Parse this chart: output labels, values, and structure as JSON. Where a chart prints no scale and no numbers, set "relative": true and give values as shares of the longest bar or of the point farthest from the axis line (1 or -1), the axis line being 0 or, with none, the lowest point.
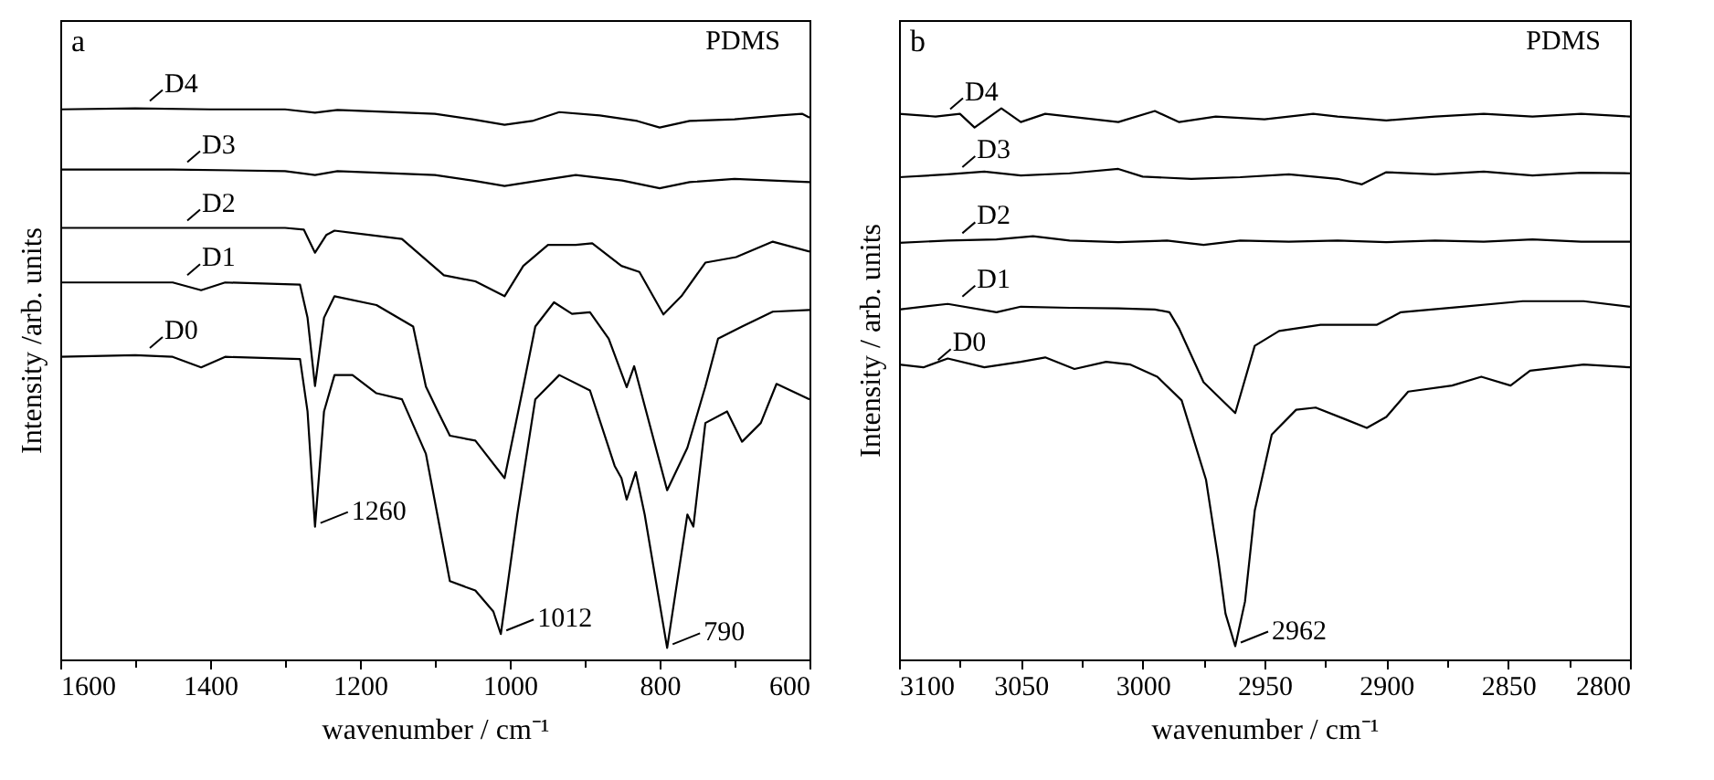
{
  "chart_data": [
    {
      "type": "line",
      "relative": true,
      "xlabel": "wavenumber / cm⁻¹",
      "ylabel": "Intensity /arb. units",
      "legend": "left",
      "xlim": [
        1600,
        600
      ],
      "xticks": [
        1600,
        {
          "value": 1500,
          "label": null
        },
        1400,
        {
          "value": 1300,
          "label": null
        },
        1200,
        {
          "value": 1100,
          "label": null
        },
        1000,
        {
          "value": 900,
          "label": null
        },
        800,
        {
          "value": 700,
          "label": null
        },
        600
      ],
      "annotations": [
        "a",
        "PDMS",
        {
          "text": "1260",
          "x": 1260,
          "y": 0.241
        },
        {
          "text": "1012",
          "x": 1012,
          "y": 0.046
        },
        {
          "text": "790",
          "x": 790,
          "y": 0.021
        }
      ],
      "series": [
        {
          "name": "D4",
          "color": "#000000",
          "x": [
            1600,
            1500,
            1400,
            1300,
            1260,
            1230,
            1100,
            1050,
            1007,
            970,
            934,
            880,
            830,
            800,
            760,
            700,
            640,
            610,
            600
          ],
          "values": [
            0.998,
            1.0,
            0.998,
            0.998,
            0.992,
            0.997,
            0.99,
            0.98,
            0.97,
            0.977,
            0.993,
            0.987,
            0.977,
            0.965,
            0.977,
            0.98,
            0.987,
            0.99,
            0.983
          ]
        },
        {
          "name": "D3",
          "color": "#000000",
          "x": [
            1600,
            1450,
            1300,
            1260,
            1230,
            1100,
            1050,
            1007,
            960,
            912,
            850,
            800,
            760,
            700,
            650,
            600
          ],
          "values": [
            0.889,
            0.889,
            0.886,
            0.879,
            0.886,
            0.879,
            0.869,
            0.859,
            0.869,
            0.879,
            0.869,
            0.855,
            0.866,
            0.872,
            0.869,
            0.866
          ]
        },
        {
          "name": "D2",
          "color": "#000000",
          "x": [
            1600,
            1450,
            1300,
            1275,
            1260,
            1245,
            1234,
            1144,
            1088,
            1046,
            1007,
            982,
            949,
            912,
            890,
            851,
            827,
            795,
            771,
            739,
            698,
            649,
            600
          ],
          "values": [
            0.783,
            0.783,
            0.783,
            0.78,
            0.738,
            0.77,
            0.778,
            0.763,
            0.697,
            0.686,
            0.659,
            0.714,
            0.752,
            0.752,
            0.755,
            0.714,
            0.703,
            0.626,
            0.659,
            0.72,
            0.73,
            0.758,
            0.74
          ]
        },
        {
          "name": "D1",
          "color": "#000000",
          "x": [
            1600,
            1450,
            1412,
            1380,
            1280,
            1270,
            1260,
            1248,
            1234,
            1178,
            1129,
            1112,
            1096,
            1080,
            1046,
            1007,
            982,
            966,
            941,
            917,
            893,
            868,
            844,
            834,
            790,
            763,
            739,
            722,
            690,
            649,
            600
          ],
          "values": [
            0.684,
            0.684,
            0.67,
            0.684,
            0.68,
            0.62,
            0.496,
            0.62,
            0.659,
            0.643,
            0.604,
            0.495,
            0.45,
            0.406,
            0.397,
            0.329,
            0.495,
            0.604,
            0.648,
            0.627,
            0.63,
            0.582,
            0.494,
            0.532,
            0.307,
            0.384,
            0.495,
            0.582,
            0.604,
            0.631,
            0.634
          ]
        },
        {
          "name": "D0",
          "color": "#000000",
          "x": [
            1600,
            1500,
            1450,
            1412,
            1380,
            1280,
            1270,
            1260,
            1248,
            1234,
            1210,
            1178,
            1144,
            1112,
            1080,
            1046,
            1022,
            1012,
            990,
            966,
            934,
            893,
            860,
            851,
            844,
            832,
            820,
            790,
            763,
            755,
            739,
            710,
            690,
            665,
            644,
            600
          ],
          "values": [
            0.549,
            0.552,
            0.549,
            0.53,
            0.549,
            0.545,
            0.45,
            0.241,
            0.45,
            0.516,
            0.516,
            0.483,
            0.472,
            0.373,
            0.142,
            0.125,
            0.087,
            0.046,
            0.263,
            0.472,
            0.516,
            0.488,
            0.351,
            0.329,
            0.29,
            0.34,
            0.263,
            0.021,
            0.263,
            0.241,
            0.429,
            0.45,
            0.395,
            0.429,
            0.5,
            0.472
          ]
        }
      ]
    },
    {
      "type": "line",
      "relative": true,
      "xlabel": "wavenumber / cm⁻¹",
      "ylabel": "Intensity / arb. units",
      "legend": "left",
      "xlim": [
        3100,
        2800
      ],
      "xticks": [
        3100,
        {
          "value": 3075,
          "label": null
        },
        3050,
        {
          "value": 3025,
          "label": null
        },
        3000,
        {
          "value": 2975,
          "label": null
        },
        2950,
        {
          "value": 2925,
          "label": null
        },
        2900,
        {
          "value": 2875,
          "label": null
        },
        2850,
        {
          "value": 2825,
          "label": null
        },
        2800
      ],
      "annotations": [
        "b",
        "PDMS",
        {
          "text": "2962",
          "x": 2962,
          "y": 0.024
        }
      ],
      "series": [
        {
          "name": "D4",
          "color": "#000000",
          "x": [
            3100,
            3085,
            3075,
            3069,
            3058,
            3050,
            3040,
            3030,
            3010,
            2995,
            2985,
            2970,
            2950,
            2930,
            2920,
            2900,
            2880,
            2860,
            2840,
            2820,
            2800
          ],
          "values": [
            0.99,
            0.985,
            0.99,
            0.965,
            1.0,
            0.975,
            0.99,
            0.985,
            0.975,
            0.995,
            0.975,
            0.985,
            0.98,
            0.99,
            0.985,
            0.978,
            0.985,
            0.99,
            0.985,
            0.99,
            0.985
          ]
        },
        {
          "name": "D3",
          "color": "#000000",
          "x": [
            3100,
            3080,
            3065,
            3050,
            3030,
            3010,
            3000,
            2980,
            2960,
            2940,
            2920,
            2910,
            2900,
            2880,
            2860,
            2840,
            2820,
            2800
          ],
          "values": [
            0.875,
            0.88,
            0.885,
            0.878,
            0.882,
            0.89,
            0.876,
            0.872,
            0.875,
            0.88,
            0.872,
            0.862,
            0.884,
            0.88,
            0.885,
            0.878,
            0.883,
            0.882
          ]
        },
        {
          "name": "D2",
          "color": "#000000",
          "x": [
            3100,
            3080,
            3060,
            3045,
            3030,
            3010,
            2990,
            2975,
            2960,
            2940,
            2920,
            2900,
            2880,
            2860,
            2840,
            2820,
            2800
          ],
          "values": [
            0.756,
            0.76,
            0.762,
            0.768,
            0.76,
            0.757,
            0.76,
            0.752,
            0.76,
            0.758,
            0.76,
            0.757,
            0.76,
            0.758,
            0.762,
            0.758,
            0.758
          ]
        },
        {
          "name": "D1",
          "color": "#000000",
          "x": [
            3100,
            3080,
            3060,
            3050,
            3030,
            3010,
            2995,
            2989,
            2985,
            2975,
            2962,
            2954,
            2944,
            2927,
            2904,
            2894,
            2869,
            2844,
            2819,
            2800
          ],
          "values": [
            0.635,
            0.645,
            0.63,
            0.64,
            0.638,
            0.637,
            0.635,
            0.63,
            0.6,
            0.503,
            0.447,
            0.569,
            0.596,
            0.607,
            0.607,
            0.63,
            0.64,
            0.65,
            0.65,
            0.64
          ]
        },
        {
          "name": "D0",
          "color": "#000000",
          "x": [
            3100,
            3090,
            3080,
            3065,
            3050,
            3040,
            3028,
            3015,
            3005,
            2994,
            2984,
            2974,
            2969,
            2966,
            2962,
            2958,
            2954,
            2947,
            2937,
            2929,
            2917,
            2908,
            2900,
            2891,
            2873,
            2861,
            2849,
            2841,
            2819,
            2800
          ],
          "values": [
            0.535,
            0.53,
            0.546,
            0.53,
            0.54,
            0.548,
            0.527,
            0.54,
            0.535,
            0.513,
            0.47,
            0.326,
            0.182,
            0.083,
            0.024,
            0.105,
            0.27,
            0.408,
            0.453,
            0.457,
            0.436,
            0.42,
            0.44,
            0.486,
            0.497,
            0.513,
            0.497,
            0.524,
            0.535,
            0.53
          ]
        }
      ]
    }
  ]
}
